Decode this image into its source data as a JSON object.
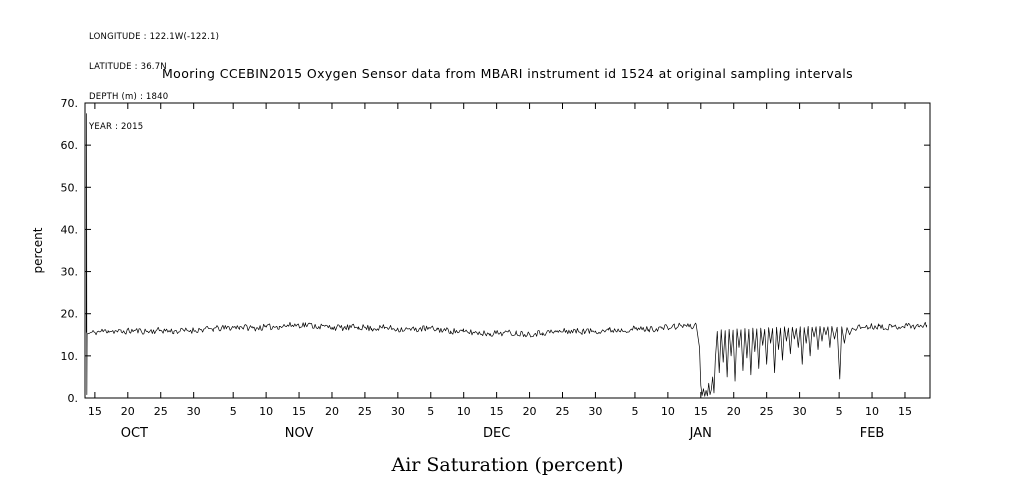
{
  "metadata": {
    "lines": [
      "LONGITUDE : 122.1W(-122.1)",
      "LATITUDE : 36.7N",
      "DEPTH (m) : 1840",
      "YEAR : 2015"
    ]
  },
  "title": "Mooring CCEBIN2015 Oxygen Sensor data from MBARI instrument id 1524 at original sampling intervals",
  "chart_data": {
    "type": "line",
    "title": "Mooring CCEBIN2015 Oxygen Sensor data from MBARI instrument id 1524 at original sampling intervals",
    "xlabel": "Air Saturation (percent)",
    "ylabel": "percent",
    "x_unit": "days since Oct 1 2015 (axis labeled by day-of-month under months OCT-FEB)",
    "xlim": [
      12.5,
      140.8
    ],
    "ylim": [
      0,
      70
    ],
    "grid": false,
    "legend": "none",
    "line_color": "#000000",
    "background_color": "#ffffff",
    "yticks": [
      {
        "v": 0,
        "label": "0."
      },
      {
        "v": 10,
        "label": "10."
      },
      {
        "v": 20,
        "label": "20."
      },
      {
        "v": 30,
        "label": "30."
      },
      {
        "v": 40,
        "label": "40."
      },
      {
        "v": 50,
        "label": "50."
      },
      {
        "v": 60,
        "label": "60."
      },
      {
        "v": 70,
        "label": "70."
      }
    ],
    "xticks": [
      {
        "v": 14,
        "label": "15"
      },
      {
        "v": 19,
        "label": "20"
      },
      {
        "v": 24,
        "label": "25"
      },
      {
        "v": 29,
        "label": "30"
      },
      {
        "v": 35,
        "label": "5"
      },
      {
        "v": 40,
        "label": "10"
      },
      {
        "v": 45,
        "label": "15"
      },
      {
        "v": 50,
        "label": "20"
      },
      {
        "v": 55,
        "label": "25"
      },
      {
        "v": 60,
        "label": "30"
      },
      {
        "v": 65,
        "label": "5"
      },
      {
        "v": 70,
        "label": "10"
      },
      {
        "v": 75,
        "label": "15"
      },
      {
        "v": 80,
        "label": "20"
      },
      {
        "v": 85,
        "label": "25"
      },
      {
        "v": 90,
        "label": "30"
      },
      {
        "v": 96,
        "label": "5"
      },
      {
        "v": 101,
        "label": "10"
      },
      {
        "v": 106,
        "label": "15"
      },
      {
        "v": 111,
        "label": "20"
      },
      {
        "v": 116,
        "label": "25"
      },
      {
        "v": 121,
        "label": "30"
      },
      {
        "v": 127,
        "label": "5"
      },
      {
        "v": 132,
        "label": "10"
      },
      {
        "v": 137,
        "label": "15"
      }
    ],
    "month_labels": [
      {
        "v": 20,
        "label": "OCT"
      },
      {
        "v": 45,
        "label": "NOV"
      },
      {
        "v": 75,
        "label": "DEC"
      },
      {
        "v": 106,
        "label": "JAN"
      },
      {
        "v": 132,
        "label": "FEB"
      }
    ],
    "noise": {
      "amplitude": 0.75,
      "seed": 11,
      "applies_above": 14,
      "step": 0.18
    },
    "series": [
      {
        "name": "air_saturation_percent",
        "points": [
          [
            12.7,
            15.5
          ],
          [
            12.74,
            67.5
          ],
          [
            12.78,
            0.8
          ],
          [
            12.82,
            15.2
          ],
          [
            14,
            15.6
          ],
          [
            16,
            16.0
          ],
          [
            18,
            15.7
          ],
          [
            20,
            16.0
          ],
          [
            22,
            15.8
          ],
          [
            24,
            16.1
          ],
          [
            26,
            15.8
          ],
          [
            28,
            16.0
          ],
          [
            30,
            16.2
          ],
          [
            32,
            16.4
          ],
          [
            34,
            16.6
          ],
          [
            36,
            16.9
          ],
          [
            38,
            16.6
          ],
          [
            40,
            16.8
          ],
          [
            42,
            17.0
          ],
          [
            44,
            17.3
          ],
          [
            46,
            17.4
          ],
          [
            48,
            17.0
          ],
          [
            50,
            16.8
          ],
          [
            52,
            16.6
          ],
          [
            54,
            16.9
          ],
          [
            56,
            16.5
          ],
          [
            58,
            16.7
          ],
          [
            60,
            16.4
          ],
          [
            62,
            16.2
          ],
          [
            64,
            16.5
          ],
          [
            66,
            16.3
          ],
          [
            68,
            15.9
          ],
          [
            70,
            15.7
          ],
          [
            72,
            15.5
          ],
          [
            74,
            15.3
          ],
          [
            76,
            15.5
          ],
          [
            78,
            15.4
          ],
          [
            80,
            15.2
          ],
          [
            82,
            15.5
          ],
          [
            84,
            15.7
          ],
          [
            86,
            15.9
          ],
          [
            88,
            15.8
          ],
          [
            90,
            15.9
          ],
          [
            92,
            16.1
          ],
          [
            94,
            16.2
          ],
          [
            96,
            16.4
          ],
          [
            98,
            16.3
          ],
          [
            100,
            16.6
          ],
          [
            102,
            16.9
          ],
          [
            103.5,
            17.3
          ],
          [
            104.5,
            16.8
          ],
          [
            105.3,
            17.4
          ],
          [
            105.8,
            12.0
          ],
          [
            106.0,
            3.0
          ],
          [
            106.2,
            0.6
          ],
          [
            106.4,
            2.2
          ],
          [
            106.6,
            0.4
          ],
          [
            106.8,
            1.8
          ],
          [
            107.0,
            0.5
          ],
          [
            107.2,
            3.5
          ],
          [
            107.4,
            0.8
          ],
          [
            107.6,
            2.0
          ],
          [
            107.8,
            5.0
          ],
          [
            108.0,
            1.2
          ],
          [
            108.2,
            9.0
          ],
          [
            108.5,
            15.8
          ],
          [
            108.8,
            6.0
          ],
          [
            109.1,
            16.2
          ],
          [
            109.4,
            8.5
          ],
          [
            109.7,
            16.0
          ],
          [
            110.0,
            5.0
          ],
          [
            110.3,
            16.3
          ],
          [
            110.6,
            10.0
          ],
          [
            110.9,
            16.1
          ],
          [
            111.2,
            4.0
          ],
          [
            111.5,
            16.4
          ],
          [
            111.8,
            12.0
          ],
          [
            112.1,
            16.2
          ],
          [
            112.4,
            6.5
          ],
          [
            112.7,
            16.5
          ],
          [
            113.0,
            9.5
          ],
          [
            113.3,
            16.3
          ],
          [
            113.6,
            5.5
          ],
          [
            113.9,
            16.6
          ],
          [
            114.2,
            11.0
          ],
          [
            114.5,
            16.4
          ],
          [
            114.8,
            7.0
          ],
          [
            115.1,
            16.6
          ],
          [
            115.4,
            12.5
          ],
          [
            115.7,
            16.3
          ],
          [
            116.0,
            8.0
          ],
          [
            116.3,
            16.7
          ],
          [
            116.6,
            13.0
          ],
          [
            116.9,
            16.5
          ],
          [
            117.2,
            6.0
          ],
          [
            117.5,
            16.8
          ],
          [
            117.8,
            11.5
          ],
          [
            118.1,
            16.6
          ],
          [
            118.4,
            9.0
          ],
          [
            118.7,
            16.9
          ],
          [
            119.0,
            13.5
          ],
          [
            119.3,
            16.6
          ],
          [
            119.6,
            10.5
          ],
          [
            119.9,
            16.8
          ],
          [
            120.2,
            14.0
          ],
          [
            120.5,
            16.5
          ],
          [
            120.8,
            12.0
          ],
          [
            121.1,
            16.9
          ],
          [
            121.4,
            8.0
          ],
          [
            121.7,
            16.7
          ],
          [
            122.0,
            13.0
          ],
          [
            122.3,
            17.0
          ],
          [
            122.6,
            10.0
          ],
          [
            122.9,
            16.8
          ],
          [
            123.2,
            14.5
          ],
          [
            123.5,
            16.9
          ],
          [
            123.8,
            11.5
          ],
          [
            124.1,
            17.0
          ],
          [
            124.4,
            13.5
          ],
          [
            124.7,
            16.8
          ],
          [
            125.0,
            15.0
          ],
          [
            125.3,
            16.9
          ],
          [
            125.6,
            12.0
          ],
          [
            125.9,
            17.0
          ],
          [
            126.3,
            14.0
          ],
          [
            126.7,
            16.8
          ],
          [
            127.1,
            4.5
          ],
          [
            127.4,
            16.9
          ],
          [
            127.8,
            13.0
          ],
          [
            128.2,
            16.7
          ],
          [
            128.6,
            15.0
          ],
          [
            129,
            16.6
          ],
          [
            131,
            16.9
          ],
          [
            133,
            17.1
          ],
          [
            135,
            16.8
          ],
          [
            137,
            17.2
          ],
          [
            139,
            17.0
          ],
          [
            140.3,
            17.3
          ]
        ]
      }
    ]
  }
}
